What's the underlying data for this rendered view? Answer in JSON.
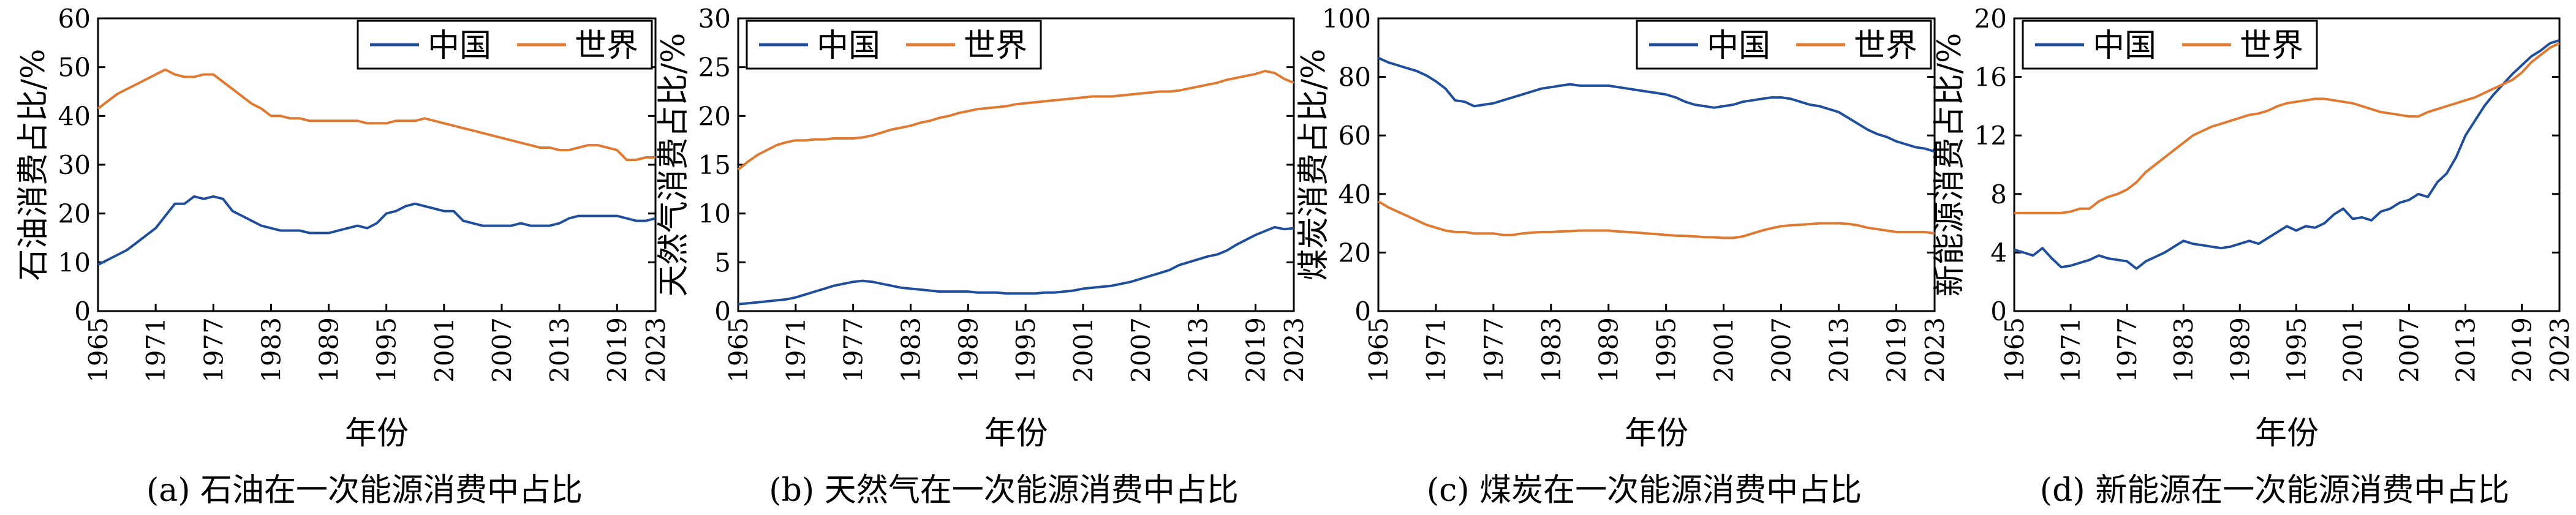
{
  "colors": {
    "china": "#1f4e9c",
    "world": "#e07a32",
    "axis": "#000000"
  },
  "years": [
    1965,
    1966,
    1967,
    1968,
    1969,
    1970,
    1971,
    1972,
    1973,
    1974,
    1975,
    1976,
    1977,
    1978,
    1979,
    1980,
    1981,
    1982,
    1983,
    1984,
    1985,
    1986,
    1987,
    1988,
    1989,
    1990,
    1991,
    1992,
    1993,
    1994,
    1995,
    1996,
    1997,
    1998,
    1999,
    2000,
    2001,
    2002,
    2003,
    2004,
    2005,
    2006,
    2007,
    2008,
    2009,
    2010,
    2011,
    2012,
    2013,
    2014,
    2015,
    2016,
    2017,
    2018,
    2019,
    2020,
    2021,
    2022,
    2023
  ],
  "chart_data": [
    {
      "type": "line",
      "caption": "(a) 石油在一次能源消费中占比",
      "xlabel": "年份",
      "ylabel": "石油消费占比/%",
      "xlim": [
        1965,
        2023
      ],
      "ylim": [
        0,
        60
      ],
      "yticks": [
        0,
        10,
        20,
        30,
        40,
        50,
        60
      ],
      "ytick_labels": [
        "0",
        "10",
        "20",
        "30",
        "40",
        "50",
        "60"
      ],
      "xticks": [
        1965,
        1971,
        1977,
        1983,
        1989,
        1995,
        2001,
        2007,
        2013,
        2019,
        2023
      ],
      "legend_position": "top-right",
      "series": [
        {
          "name": "中国",
          "color_key": "china",
          "values": [
            9.5,
            10.5,
            11.5,
            12.5,
            14.0,
            15.5,
            17.0,
            19.5,
            22.0,
            22.0,
            23.5,
            23.0,
            23.5,
            23.0,
            20.5,
            19.5,
            18.5,
            17.5,
            17.0,
            16.5,
            16.5,
            16.5,
            16.0,
            16.0,
            16.0,
            16.5,
            17.0,
            17.5,
            17.0,
            18.0,
            20.0,
            20.5,
            21.5,
            22.0,
            21.5,
            21.0,
            20.5,
            20.5,
            18.5,
            18.0,
            17.5,
            17.5,
            17.5,
            17.5,
            18.0,
            17.5,
            17.5,
            17.5,
            18.0,
            19.0,
            19.5,
            19.5,
            19.5,
            19.5,
            19.5,
            19.0,
            18.5,
            18.5,
            19.0
          ]
        },
        {
          "name": "世界",
          "color_key": "world",
          "values": [
            41.5,
            43.0,
            44.5,
            45.5,
            46.5,
            47.5,
            48.5,
            49.5,
            48.5,
            48.0,
            48.0,
            48.5,
            48.5,
            47.0,
            45.5,
            44.0,
            42.5,
            41.5,
            40.0,
            40.0,
            39.5,
            39.5,
            39.0,
            39.0,
            39.0,
            39.0,
            39.0,
            39.0,
            38.5,
            38.5,
            38.5,
            39.0,
            39.0,
            39.0,
            39.5,
            39.0,
            38.5,
            38.0,
            37.5,
            37.0,
            36.5,
            36.0,
            35.5,
            35.0,
            34.5,
            34.0,
            33.5,
            33.5,
            33.0,
            33.0,
            33.5,
            34.0,
            34.0,
            33.5,
            33.0,
            31.0,
            31.0,
            31.5,
            31.5
          ]
        }
      ]
    },
    {
      "type": "line",
      "caption": "(b) 天然气在一次能源消费中占比",
      "xlabel": "年份",
      "ylabel": "天然气消费占比/%",
      "xlim": [
        1965,
        2023
      ],
      "ylim": [
        0,
        30
      ],
      "yticks": [
        0,
        5,
        10,
        15,
        20,
        25,
        30
      ],
      "ytick_labels": [
        "0",
        "5",
        "10",
        "15",
        "20",
        "25",
        "30"
      ],
      "xticks": [
        1965,
        1971,
        1977,
        1983,
        1989,
        1995,
        2001,
        2007,
        2013,
        2019,
        2023
      ],
      "legend_position": "top-left",
      "series": [
        {
          "name": "中国",
          "color_key": "china",
          "values": [
            0.7,
            0.8,
            0.9,
            1.0,
            1.1,
            1.2,
            1.4,
            1.7,
            2.0,
            2.3,
            2.6,
            2.8,
            3.0,
            3.1,
            3.0,
            2.8,
            2.6,
            2.4,
            2.3,
            2.2,
            2.1,
            2.0,
            2.0,
            2.0,
            2.0,
            1.9,
            1.9,
            1.9,
            1.8,
            1.8,
            1.8,
            1.8,
            1.9,
            1.9,
            2.0,
            2.1,
            2.3,
            2.4,
            2.5,
            2.6,
            2.8,
            3.0,
            3.3,
            3.6,
            3.9,
            4.2,
            4.7,
            5.0,
            5.3,
            5.6,
            5.8,
            6.2,
            6.8,
            7.3,
            7.8,
            8.2,
            8.6,
            8.4,
            8.5
          ]
        },
        {
          "name": "世界",
          "color_key": "world",
          "values": [
            14.5,
            15.3,
            16.0,
            16.5,
            17.0,
            17.3,
            17.5,
            17.5,
            17.6,
            17.6,
            17.7,
            17.7,
            17.7,
            17.8,
            18.0,
            18.3,
            18.6,
            18.8,
            19.0,
            19.3,
            19.5,
            19.8,
            20.0,
            20.3,
            20.5,
            20.7,
            20.8,
            20.9,
            21.0,
            21.2,
            21.3,
            21.4,
            21.5,
            21.6,
            21.7,
            21.8,
            21.9,
            22.0,
            22.0,
            22.0,
            22.1,
            22.2,
            22.3,
            22.4,
            22.5,
            22.5,
            22.6,
            22.8,
            23.0,
            23.2,
            23.4,
            23.7,
            23.9,
            24.1,
            24.3,
            24.6,
            24.4,
            23.8,
            23.4
          ]
        }
      ]
    },
    {
      "type": "line",
      "caption": "(c) 煤炭在一次能源消费中占比",
      "xlabel": "年份",
      "ylabel": "煤炭消费占比/%",
      "xlim": [
        1965,
        2023
      ],
      "ylim": [
        0,
        100
      ],
      "yticks": [
        0,
        20,
        40,
        60,
        80,
        100
      ],
      "ytick_labels": [
        "0",
        "20",
        "40",
        "60",
        "80",
        "100"
      ],
      "xticks": [
        1965,
        1971,
        1977,
        1983,
        1989,
        1995,
        2001,
        2007,
        2013,
        2019,
        2023
      ],
      "legend_position": "top-right",
      "series": [
        {
          "name": "中国",
          "color_key": "china",
          "values": [
            86.5,
            85.0,
            84.0,
            83.0,
            82.0,
            80.5,
            78.5,
            76.0,
            72.0,
            71.5,
            70.0,
            70.5,
            71.0,
            72.0,
            73.0,
            74.0,
            75.0,
            76.0,
            76.5,
            77.0,
            77.5,
            77.0,
            77.0,
            77.0,
            77.0,
            76.5,
            76.0,
            75.5,
            75.0,
            74.5,
            74.0,
            73.0,
            71.5,
            70.5,
            70.0,
            69.5,
            70.0,
            70.5,
            71.5,
            72.0,
            72.5,
            73.0,
            73.0,
            72.5,
            71.5,
            70.5,
            70.0,
            69.0,
            68.0,
            66.0,
            64.0,
            62.0,
            60.5,
            59.5,
            58.0,
            57.0,
            56.0,
            55.5,
            54.5
          ]
        },
        {
          "name": "世界",
          "color_key": "world",
          "values": [
            37.5,
            35.5,
            34.0,
            32.5,
            31.0,
            29.5,
            28.5,
            27.5,
            27.0,
            27.0,
            26.5,
            26.5,
            26.5,
            26.0,
            26.0,
            26.5,
            26.8,
            27.0,
            27.0,
            27.2,
            27.3,
            27.5,
            27.5,
            27.5,
            27.5,
            27.2,
            27.0,
            26.8,
            26.5,
            26.3,
            26.0,
            25.8,
            25.7,
            25.5,
            25.3,
            25.2,
            25.0,
            25.0,
            25.5,
            26.5,
            27.5,
            28.3,
            29.0,
            29.3,
            29.5,
            29.7,
            30.0,
            30.0,
            30.0,
            29.8,
            29.3,
            28.5,
            28.0,
            27.5,
            27.0,
            27.0,
            27.0,
            27.0,
            26.5
          ]
        }
      ]
    },
    {
      "type": "line",
      "caption": "(d) 新能源在一次能源消费中占比",
      "xlabel": "年份",
      "ylabel": "新能源消费占比/%",
      "xlim": [
        1965,
        2023
      ],
      "ylim": [
        0,
        20
      ],
      "yticks": [
        0,
        4,
        8,
        12,
        16,
        20
      ],
      "ytick_labels": [
        "0",
        "4",
        "8",
        "12",
        "16",
        "20"
      ],
      "xticks": [
        1965,
        1971,
        1977,
        1983,
        1989,
        1995,
        2001,
        2007,
        2013,
        2019,
        2023
      ],
      "legend_position": "top-left",
      "series": [
        {
          "name": "中国",
          "color_key": "china",
          "values": [
            4.2,
            4.0,
            3.8,
            4.3,
            3.6,
            3.0,
            3.1,
            3.3,
            3.5,
            3.8,
            3.6,
            3.5,
            3.4,
            2.9,
            3.4,
            3.7,
            4.0,
            4.4,
            4.8,
            4.6,
            4.5,
            4.4,
            4.3,
            4.4,
            4.6,
            4.8,
            4.6,
            5.0,
            5.4,
            5.8,
            5.5,
            5.8,
            5.7,
            6.0,
            6.6,
            7.0,
            6.3,
            6.4,
            6.2,
            6.8,
            7.0,
            7.4,
            7.6,
            8.0,
            7.8,
            8.8,
            9.4,
            10.5,
            12.0,
            13.0,
            14.0,
            14.8,
            15.5,
            16.2,
            16.8,
            17.4,
            17.8,
            18.3,
            18.5
          ]
        },
        {
          "name": "世界",
          "color_key": "world",
          "values": [
            6.7,
            6.7,
            6.7,
            6.7,
            6.7,
            6.7,
            6.8,
            7.0,
            7.0,
            7.5,
            7.8,
            8.0,
            8.3,
            8.8,
            9.5,
            10.0,
            10.5,
            11.0,
            11.5,
            12.0,
            12.3,
            12.6,
            12.8,
            13.0,
            13.2,
            13.4,
            13.5,
            13.7,
            14.0,
            14.2,
            14.3,
            14.4,
            14.5,
            14.5,
            14.4,
            14.3,
            14.2,
            14.0,
            13.8,
            13.6,
            13.5,
            13.4,
            13.3,
            13.3,
            13.6,
            13.8,
            14.0,
            14.2,
            14.4,
            14.6,
            14.9,
            15.2,
            15.5,
            15.8,
            16.3,
            17.0,
            17.5,
            18.0,
            18.3
          ]
        }
      ]
    }
  ]
}
